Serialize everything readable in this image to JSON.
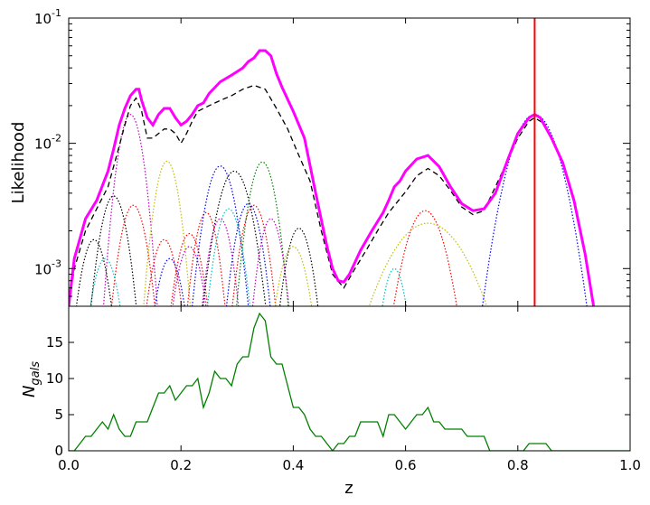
{
  "chart_data": [
    {
      "type": "line",
      "panel": "top",
      "title": "",
      "xlabel": "",
      "ylabel": "Likelihood",
      "xlim": [
        0.0,
        1.0
      ],
      "ylim": [
        0.0005,
        0.1
      ],
      "yscale": "log",
      "grid": false,
      "y_tick_labels": [
        {
          "value": 0.001,
          "base": "10",
          "exp": "-3"
        },
        {
          "value": 0.01,
          "base": "10",
          "exp": "-2"
        },
        {
          "value": 0.1,
          "base": "10",
          "exp": "-1"
        }
      ],
      "vline": {
        "x": 0.83,
        "color": "#ff0000"
      },
      "series": [
        {
          "style": "total-solid",
          "color": "#ff00ff",
          "points": [
            [
              0.0,
              0.0005
            ],
            [
              0.01,
              0.0012
            ],
            [
              0.03,
              0.0025
            ],
            [
              0.05,
              0.0035
            ],
            [
              0.07,
              0.006
            ],
            [
              0.08,
              0.009
            ],
            [
              0.09,
              0.014
            ],
            [
              0.1,
              0.019
            ],
            [
              0.11,
              0.024
            ],
            [
              0.12,
              0.027
            ],
            [
              0.125,
              0.027
            ],
            [
              0.13,
              0.022
            ],
            [
              0.14,
              0.016
            ],
            [
              0.15,
              0.014
            ],
            [
              0.16,
              0.017
            ],
            [
              0.17,
              0.019
            ],
            [
              0.18,
              0.019
            ],
            [
              0.19,
              0.016
            ],
            [
              0.2,
              0.014
            ],
            [
              0.21,
              0.015
            ],
            [
              0.22,
              0.017
            ],
            [
              0.23,
              0.02
            ],
            [
              0.24,
              0.021
            ],
            [
              0.25,
              0.025
            ],
            [
              0.27,
              0.031
            ],
            [
              0.29,
              0.035
            ],
            [
              0.31,
              0.04
            ],
            [
              0.32,
              0.045
            ],
            [
              0.33,
              0.048
            ],
            [
              0.34,
              0.055
            ],
            [
              0.35,
              0.055
            ],
            [
              0.36,
              0.05
            ],
            [
              0.37,
              0.036
            ],
            [
              0.38,
              0.028
            ],
            [
              0.4,
              0.018
            ],
            [
              0.42,
              0.011
            ],
            [
              0.44,
              0.004
            ],
            [
              0.46,
              0.0015
            ],
            [
              0.47,
              0.001
            ],
            [
              0.48,
              0.0008
            ],
            [
              0.49,
              0.00078
            ],
            [
              0.5,
              0.0009
            ],
            [
              0.52,
              0.0014
            ],
            [
              0.54,
              0.002
            ],
            [
              0.56,
              0.0028
            ],
            [
              0.57,
              0.0035
            ],
            [
              0.58,
              0.0045
            ],
            [
              0.59,
              0.005
            ],
            [
              0.6,
              0.006
            ],
            [
              0.62,
              0.0075
            ],
            [
              0.64,
              0.008
            ],
            [
              0.66,
              0.0065
            ],
            [
              0.68,
              0.0045
            ],
            [
              0.7,
              0.0033
            ],
            [
              0.72,
              0.0029
            ],
            [
              0.74,
              0.003
            ],
            [
              0.76,
              0.004
            ],
            [
              0.78,
              0.007
            ],
            [
              0.8,
              0.012
            ],
            [
              0.82,
              0.016
            ],
            [
              0.83,
              0.017
            ],
            [
              0.84,
              0.016
            ],
            [
              0.86,
              0.011
            ],
            [
              0.88,
              0.007
            ],
            [
              0.9,
              0.0035
            ],
            [
              0.92,
              0.0013
            ],
            [
              0.935,
              0.0005
            ]
          ]
        },
        {
          "style": "total-dashed",
          "color": "#000000",
          "points": [
            [
              0.0,
              0.0005
            ],
            [
              0.01,
              0.001
            ],
            [
              0.03,
              0.002
            ],
            [
              0.05,
              0.003
            ],
            [
              0.07,
              0.0045
            ],
            [
              0.09,
              0.0095
            ],
            [
              0.1,
              0.014
            ],
            [
              0.11,
              0.02
            ],
            [
              0.12,
              0.023
            ],
            [
              0.13,
              0.018
            ],
            [
              0.14,
              0.011
            ],
            [
              0.15,
              0.011
            ],
            [
              0.17,
              0.013
            ],
            [
              0.18,
              0.013
            ],
            [
              0.19,
              0.012
            ],
            [
              0.2,
              0.01
            ],
            [
              0.21,
              0.012
            ],
            [
              0.22,
              0.015
            ],
            [
              0.23,
              0.018
            ],
            [
              0.25,
              0.02
            ],
            [
              0.27,
              0.022
            ],
            [
              0.29,
              0.024
            ],
            [
              0.31,
              0.027
            ],
            [
              0.33,
              0.029
            ],
            [
              0.35,
              0.027
            ],
            [
              0.37,
              0.019
            ],
            [
              0.39,
              0.013
            ],
            [
              0.41,
              0.008
            ],
            [
              0.43,
              0.005
            ],
            [
              0.45,
              0.002
            ],
            [
              0.47,
              0.0009
            ],
            [
              0.49,
              0.0007
            ],
            [
              0.51,
              0.001
            ],
            [
              0.53,
              0.0014
            ],
            [
              0.55,
              0.002
            ],
            [
              0.57,
              0.0028
            ],
            [
              0.6,
              0.0041
            ],
            [
              0.62,
              0.0055
            ],
            [
              0.64,
              0.0063
            ],
            [
              0.66,
              0.0055
            ],
            [
              0.68,
              0.0042
            ],
            [
              0.7,
              0.0031
            ],
            [
              0.72,
              0.0027
            ],
            [
              0.74,
              0.0029
            ],
            [
              0.76,
              0.0045
            ],
            [
              0.78,
              0.007
            ],
            [
              0.8,
              0.011
            ],
            [
              0.82,
              0.015
            ],
            [
              0.83,
              0.016
            ],
            [
              0.84,
              0.015
            ],
            [
              0.85,
              0.014
            ]
          ]
        }
      ],
      "components": [
        {
          "color": "#bf00bf",
          "center": 0.11,
          "peak": 0.017,
          "sigma": 0.018
        },
        {
          "color": "#000000",
          "center": 0.08,
          "peak": 0.0038,
          "sigma": 0.02
        },
        {
          "color": "#000000",
          "center": 0.045,
          "peak": 0.0017,
          "sigma": 0.02
        },
        {
          "color": "#ff0000",
          "center": 0.115,
          "peak": 0.0032,
          "sigma": 0.02
        },
        {
          "color": "#00bfbf",
          "center": 0.065,
          "peak": 0.0012,
          "sigma": 0.02
        },
        {
          "color": "#bfbf00",
          "center": 0.175,
          "peak": 0.0072,
          "sigma": 0.018
        },
        {
          "color": "#ff0000",
          "center": 0.17,
          "peak": 0.0017,
          "sigma": 0.02
        },
        {
          "color": "#0000ff",
          "center": 0.18,
          "peak": 0.0012,
          "sigma": 0.02
        },
        {
          "color": "#ff0000",
          "center": 0.215,
          "peak": 0.0019,
          "sigma": 0.02
        },
        {
          "color": "#bf00bf",
          "center": 0.215,
          "peak": 0.0015,
          "sigma": 0.02
        },
        {
          "color": "#ff0000",
          "center": 0.245,
          "peak": 0.0028,
          "sigma": 0.018
        },
        {
          "color": "#0000ff",
          "center": 0.27,
          "peak": 0.0066,
          "sigma": 0.022
        },
        {
          "color": "#000000",
          "center": 0.295,
          "peak": 0.006,
          "sigma": 0.025
        },
        {
          "color": "#bf00bf",
          "center": 0.27,
          "peak": 0.0025,
          "sigma": 0.018
        },
        {
          "color": "#00bfbf",
          "center": 0.285,
          "peak": 0.003,
          "sigma": 0.02
        },
        {
          "color": "#0000ff",
          "center": 0.32,
          "peak": 0.0033,
          "sigma": 0.02
        },
        {
          "color": "#008000",
          "center": 0.345,
          "peak": 0.0071,
          "sigma": 0.02
        },
        {
          "color": "#ff0000",
          "center": 0.33,
          "peak": 0.0032,
          "sigma": 0.02
        },
        {
          "color": "#bf00bf",
          "center": 0.36,
          "peak": 0.0025,
          "sigma": 0.018
        },
        {
          "color": "#000000",
          "center": 0.41,
          "peak": 0.0021,
          "sigma": 0.02
        },
        {
          "color": "#bfbf00",
          "center": 0.4,
          "peak": 0.0015,
          "sigma": 0.022
        },
        {
          "color": "#ff0000",
          "center": 0.635,
          "peak": 0.0029,
          "sigma": 0.03
        },
        {
          "color": "#bfbf00",
          "center": 0.64,
          "peak": 0.0023,
          "sigma": 0.06
        },
        {
          "color": "#00bfbf",
          "center": 0.58,
          "peak": 0.001,
          "sigma": 0.018
        },
        {
          "color": "#0000ff",
          "center": 0.83,
          "peak": 0.017,
          "sigma": 0.035
        }
      ]
    },
    {
      "type": "line",
      "panel": "bottom",
      "title": "",
      "xlabel": "z",
      "ylabel_base": "N",
      "ylabel_sub": "gals",
      "xlim": [
        0.0,
        1.0
      ],
      "ylim": [
        0,
        20
      ],
      "grid": false,
      "x_ticks": [
        "0.0",
        "0.2",
        "0.4",
        "0.6",
        "0.8",
        "1.0"
      ],
      "y_ticks": [
        0,
        5,
        10,
        15
      ],
      "series": [
        {
          "color": "#008000",
          "step": 0.01,
          "values": [
            0,
            0,
            1,
            2,
            2,
            3,
            4,
            3,
            5,
            3,
            2,
            2,
            4,
            4,
            4,
            6,
            8,
            8,
            9,
            7,
            8,
            9,
            9,
            10,
            6,
            8,
            11,
            10,
            10,
            9,
            12,
            13,
            13,
            17,
            19,
            18,
            13,
            12,
            12,
            9,
            6,
            6,
            5,
            3,
            2,
            2,
            1,
            0,
            1,
            1,
            2,
            2,
            4,
            4,
            4,
            4,
            2,
            5,
            5,
            4,
            3,
            4,
            5,
            5,
            6,
            4,
            4,
            3,
            3,
            3,
            3,
            2,
            2,
            2,
            2,
            0,
            0,
            0,
            0,
            0,
            0,
            0,
            1,
            1,
            1,
            1,
            0,
            0,
            0,
            0,
            0,
            0,
            0,
            0,
            0,
            0,
            0,
            0,
            0,
            0,
            0
          ]
        }
      ]
    }
  ]
}
